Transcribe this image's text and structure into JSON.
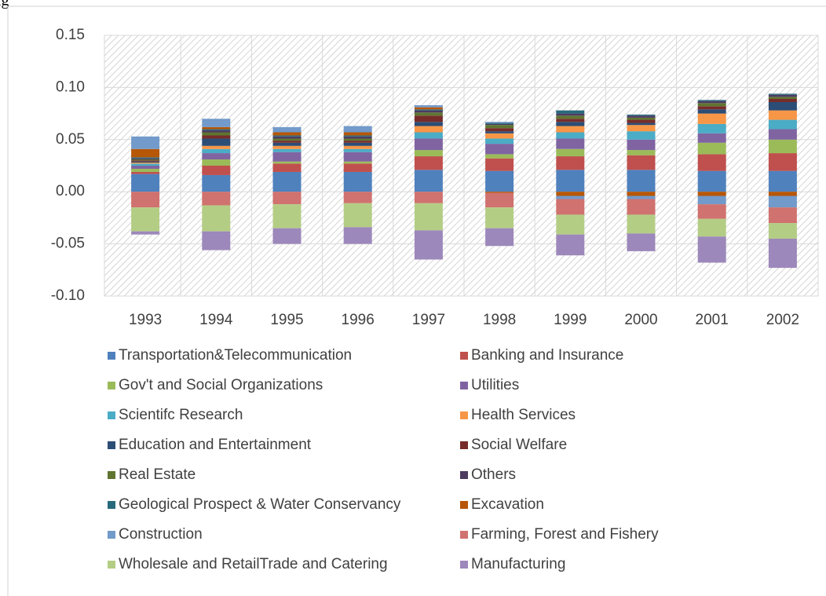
{
  "caption": "ig",
  "chart_data": {
    "type": "bar",
    "stacked": true,
    "categories": [
      "1993",
      "1994",
      "1995",
      "1996",
      "1997",
      "1998",
      "1999",
      "2000",
      "2001",
      "2002"
    ],
    "ylim": [
      -0.1,
      0.15
    ],
    "yticks": [
      {
        "value": -0.1,
        "label": "-0.10"
      },
      -0.05,
      {
        "value": 0,
        "label": "0.00"
      },
      0.05,
      {
        "value": 0.1,
        "label": "0.10"
      },
      0.15
    ],
    "grid": true,
    "legend": "bottom",
    "series": [
      {
        "name": "Transportation&Telecommunication",
        "color": "#4f81bd",
        "values": [
          0.017,
          0.016,
          0.019,
          0.019,
          0.021,
          0.02,
          0.021,
          0.021,
          0.02,
          0.02
        ]
      },
      {
        "name": "Banking and Insurance",
        "color": "#c0504d",
        "values": [
          0.002,
          0.009,
          0.008,
          0.008,
          0.013,
          0.012,
          0.013,
          0.014,
          0.016,
          0.017
        ]
      },
      {
        "name": "Gov't and Social Organizations",
        "color": "#9bbb59",
        "values": [
          0.003,
          0.006,
          0.002,
          0.002,
          0.006,
          0.004,
          0.007,
          0.005,
          0.011,
          0.013
        ]
      },
      {
        "name": "Utilities",
        "color": "#8064a2",
        "values": [
          0.003,
          0.006,
          0.009,
          0.009,
          0.011,
          0.01,
          0.01,
          0.01,
          0.009,
          0.01
        ]
      },
      {
        "name": "Scientifc Research",
        "color": "#4bacc6",
        "values": [
          0.002,
          0.004,
          0.003,
          0.003,
          0.006,
          0.005,
          0.006,
          0.008,
          0.009,
          0.009
        ]
      },
      {
        "name": "Health Services",
        "color": "#f79646",
        "values": [
          0.001,
          0.003,
          0.003,
          0.003,
          0.006,
          0.005,
          0.006,
          0.006,
          0.01,
          0.009
        ]
      },
      {
        "name": "Education and Entertainment",
        "color": "#2c4d75",
        "values": [
          0.001,
          0.007,
          0.003,
          0.003,
          0.004,
          0.002,
          0.004,
          0.002,
          0.004,
          0.008
        ]
      },
      {
        "name": "Social Welfare",
        "color": "#772c2a",
        "values": [
          0.001,
          0.003,
          0.002,
          0.002,
          0.006,
          0.003,
          0.003,
          0.003,
          0.003,
          0.003
        ]
      },
      {
        "name": "Real Estate",
        "color": "#5f7530",
        "values": [
          0.001,
          0.003,
          0.002,
          0.002,
          0.003,
          0.003,
          0.003,
          0.002,
          0.003,
          0.002
        ]
      },
      {
        "name": "Others",
        "color": "#4d3b62",
        "values": [
          0.001,
          0.002,
          0.002,
          0.002,
          0.002,
          0.001,
          0.002,
          0.002,
          0.002,
          0.002
        ]
      },
      {
        "name": "Geological Prospect & Water Conservancy",
        "color": "#276a7c",
        "values": [
          0.001,
          0.001,
          0.001,
          0.001,
          0.001,
          0.001,
          0.003,
          0.001,
          0.001,
          0.001
        ]
      },
      {
        "name": "Excavation",
        "color": "#b65708",
        "values": [
          0.008,
          0.002,
          0.003,
          0.003,
          0.002,
          -0.001,
          -0.004,
          -0.004,
          -0.004,
          -0.004
        ]
      },
      {
        "name": "Construction",
        "color": "#729aca",
        "values": [
          0.012,
          0.008,
          0.005,
          0.006,
          0.002,
          0.001,
          -0.003,
          -0.003,
          -0.008,
          -0.011
        ]
      },
      {
        "name": "Farming, Forest and Fishery",
        "color": "#d0726f",
        "values": [
          -0.015,
          -0.013,
          -0.012,
          -0.011,
          -0.011,
          -0.014,
          -0.015,
          -0.015,
          -0.014,
          -0.015
        ]
      },
      {
        "name": "Wholesale and RetailTrade and Catering",
        "color": "#b4cd85",
        "values": [
          -0.023,
          -0.025,
          -0.023,
          -0.023,
          -0.026,
          -0.02,
          -0.019,
          -0.018,
          -0.017,
          -0.015
        ]
      },
      {
        "name": "Manufacturing",
        "color": "#9d88bb",
        "values": [
          -0.003,
          -0.018,
          -0.015,
          -0.016,
          -0.028,
          -0.017,
          -0.02,
          -0.017,
          -0.025,
          -0.028
        ]
      }
    ]
  }
}
